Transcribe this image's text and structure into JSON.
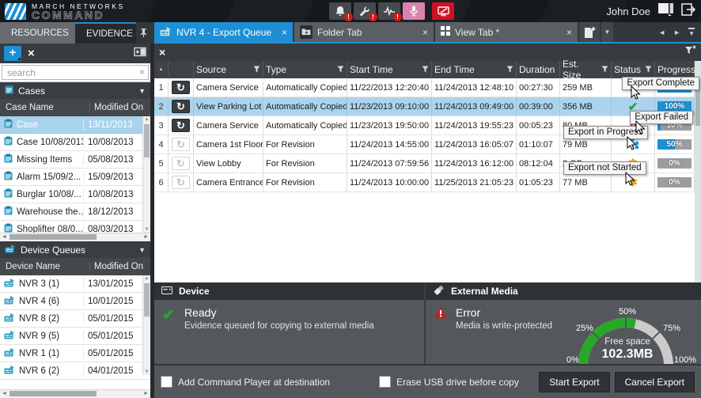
{
  "topbar": {
    "brand_line1": "MARCH NETWORKS",
    "brand_line2": "COMMAND",
    "user_name": "John Doe"
  },
  "panel_tabs": [
    {
      "label": "RESOURCES",
      "active": false
    },
    {
      "label": "EVIDENCE",
      "active": true
    }
  ],
  "main_tabs": [
    {
      "label": "NVR 4 - Export Queue",
      "active": true,
      "icon": "nvr-export-icon"
    },
    {
      "label": "Folder Tab",
      "active": false,
      "icon": "folder-icon"
    },
    {
      "label": "View Tab *",
      "active": false,
      "icon": "view-grid-icon"
    }
  ],
  "sidebar": {
    "search_placeholder": "search",
    "cases": {
      "title": "Cases",
      "columns": [
        "Case Name",
        "Modified On"
      ],
      "rows": [
        {
          "name": "Case",
          "modified": "13/11/2013",
          "selected": true
        },
        {
          "name": "Case 10/08/2013",
          "modified": "10/08/2013",
          "selected": false
        },
        {
          "name": "Missing Items",
          "modified": "05/08/2013",
          "selected": false
        },
        {
          "name": "Alarm 15/09/2...",
          "modified": "15/09/2013",
          "selected": false
        },
        {
          "name": "Burglar 10/08/...",
          "modified": "10/08/2013",
          "selected": false
        },
        {
          "name": "Warehouse the...",
          "modified": "18/12/2013",
          "selected": false
        },
        {
          "name": "Shoplifter 08/0...",
          "modified": "08/03/2013",
          "selected": false
        }
      ]
    },
    "device_queues": {
      "title": "Device Queues",
      "columns": [
        "Device Name",
        "Modified On"
      ],
      "rows": [
        {
          "name": "NVR 3 (1)",
          "modified": "13/01/2015"
        },
        {
          "name": "NVR 4 (6)",
          "modified": "10/01/2015"
        },
        {
          "name": "NVR 8 (2)",
          "modified": "05/01/2015"
        },
        {
          "name": "NVR 9 (5)",
          "modified": "05/01/2015"
        },
        {
          "name": "NVR 1 (1)",
          "modified": "05/01/2015"
        },
        {
          "name": "NVR 6 (2)",
          "modified": "04/01/2015"
        }
      ]
    }
  },
  "queue_table": {
    "columns": [
      "Source",
      "Type",
      "Start Time",
      "End Time",
      "Duration",
      "Est. Size",
      "Status",
      "Progress"
    ],
    "rows": [
      {
        "num": "1",
        "source": "Camera Service",
        "type": "Automatically Copied",
        "start": "11/22/2013 12:20:40",
        "end": "11/24/2013 12:48:10",
        "duration": "00:27:30",
        "size": "259 MB",
        "status": "complete",
        "progress": 100,
        "progress_label": "100%",
        "selected": false,
        "refresh_active": true
      },
      {
        "num": "2",
        "source": "View Parking Lot",
        "type": "Automatically Copied",
        "start": "11/23/2013 09:10:00",
        "end": "11/24/2013 09:49:00",
        "duration": "00:39:00",
        "size": "356 MB",
        "status": "complete",
        "progress": 100,
        "progress_label": "100%",
        "selected": true,
        "refresh_active": true
      },
      {
        "num": "3",
        "source": "Camera Service",
        "type": "Automatically Copied",
        "start": "11/23/2013 19:50:00",
        "end": "11/24/2013 19:55:23",
        "duration": "00:05:23",
        "size": "80 MB",
        "status": "failed",
        "progress": 10,
        "progress_label": "10%",
        "selected": false,
        "refresh_active": true
      },
      {
        "num": "4",
        "source": "Camera 1st Floor",
        "type": "For Revision",
        "start": "11/24/2013 14:55:00",
        "end": "11/24/2013 16:05:07",
        "duration": "01:10:07",
        "size": "79 MB",
        "status": "in-progress",
        "progress": 50,
        "progress_label": "50%",
        "selected": false,
        "refresh_active": false
      },
      {
        "num": "5",
        "source": "View Lobby",
        "type": "For Revision",
        "start": "11/24/2013 07:59:56",
        "end": "11/24/2013 16:12:00",
        "duration": "08:12:04",
        "size": "2 GB",
        "status": "not-started",
        "progress": 0,
        "progress_label": "0%",
        "selected": false,
        "refresh_active": false
      },
      {
        "num": "6",
        "source": "Camera Entrance",
        "type": "For Revision",
        "start": "11/24/2013 10:00:00",
        "end": "11/25/2013 21:05:23",
        "duration": "01:05:23",
        "size": "77 MB",
        "status": "not-started",
        "progress": 0,
        "progress_label": "0%",
        "selected": false,
        "refresh_active": false
      }
    ],
    "status_tooltips": [
      {
        "text": "Export Complete"
      },
      {
        "text": "Export Failed"
      },
      {
        "text": "Export in Progress"
      },
      {
        "text": "Export not Started"
      }
    ]
  },
  "device_panel": {
    "title": "Device",
    "status": "Ready",
    "detail": "Evidence queued for copying to external media"
  },
  "external_media_panel": {
    "title": "External Media",
    "status": "Error",
    "detail": "Media is write-protected",
    "gauge": {
      "labels": [
        "0%",
        "25%",
        "50%",
        "75%",
        "100%"
      ],
      "free_label": "Free space",
      "free_value": "102.3MB",
      "percent_green": 57
    }
  },
  "footer": {
    "add_player_label": "Add Command Player at destination",
    "add_player_checked": false,
    "erase_usb_label": "Erase USB drive before copy",
    "erase_usb_checked": false,
    "start_button": "Start Export",
    "cancel_button": "Cancel Export"
  },
  "colors": {
    "accent_blue": "#1e8fd4",
    "selection_blue": "#abd3ee",
    "success_green": "#28a42b",
    "error_red": "#c21f1f",
    "warning_amber": "#e7a600",
    "gauge_green": "#27a827"
  }
}
